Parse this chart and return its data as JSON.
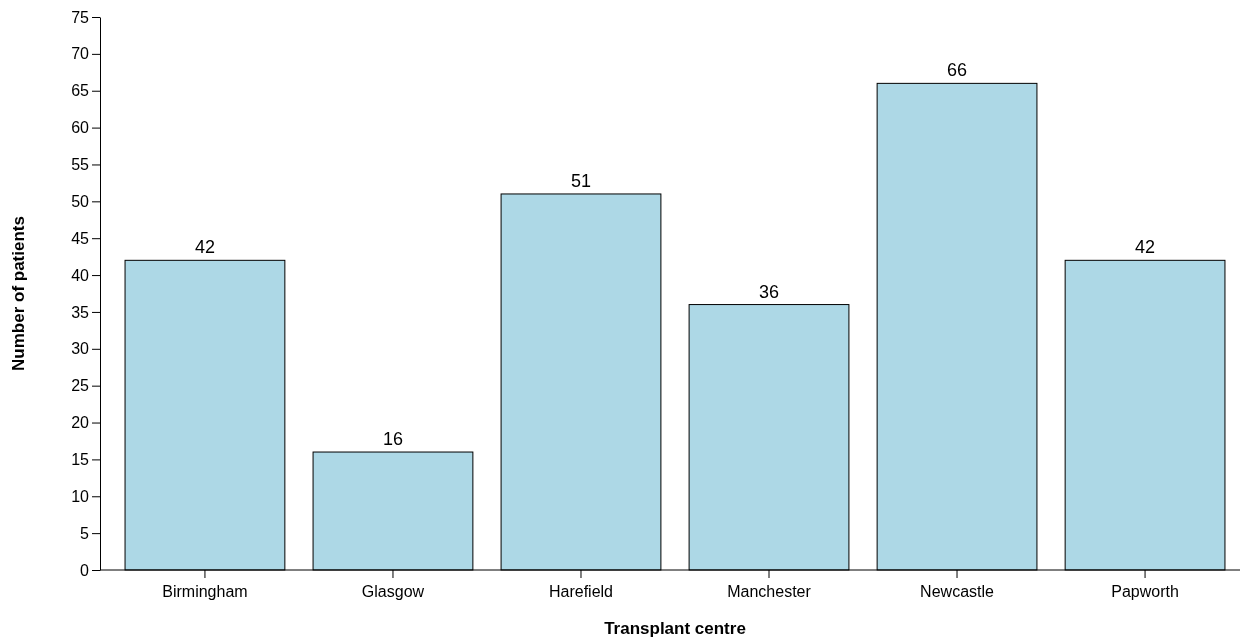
{
  "chart_data": {
    "type": "bar",
    "xlabel": "Transplant centre",
    "ylabel": "Number of patients",
    "categories": [
      "Birmingham",
      "Glasgow",
      "Harefield",
      "Manchester",
      "Newcastle",
      "Papworth"
    ],
    "values": [
      42,
      16,
      51,
      36,
      66,
      42
    ],
    "color": "#add8e6",
    "ylim": [
      0,
      75
    ],
    "yticks": [
      0,
      5,
      10,
      15,
      20,
      25,
      30,
      35,
      40,
      45,
      50,
      55,
      60,
      65,
      70,
      75
    ],
    "data_labels": true
  }
}
